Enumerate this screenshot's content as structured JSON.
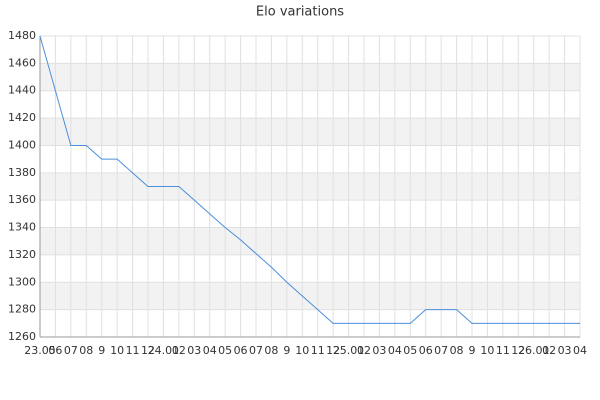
{
  "chart_data": {
    "type": "line",
    "title": "Elo variations",
    "categories": [
      "23.05",
      "06",
      "07",
      "08",
      "9",
      "10",
      "11",
      "12",
      "24.01",
      "02",
      "03",
      "04",
      "05",
      "06",
      "07",
      "08",
      "9",
      "10",
      "11",
      "12",
      "25.01",
      "02",
      "03",
      "04",
      "05",
      "06",
      "07",
      "08",
      "9",
      "10",
      "11",
      "12",
      "26.01",
      "02",
      "03",
      "04"
    ],
    "series": [
      {
        "name": "Elo",
        "color": "#4a8fdc",
        "values": [
          1480,
          1440,
          1400,
          1400,
          1390,
          1390,
          1380,
          1370,
          1370,
          1370,
          1360,
          1350,
          1340,
          1331,
          1321,
          1311,
          1300,
          1290,
          1280,
          1270,
          1270,
          1270,
          1270,
          1270,
          1270,
          1280,
          1280,
          1280,
          1270,
          1270,
          1270,
          1270,
          1270,
          1270,
          1270,
          1270
        ]
      }
    ],
    "ylim": [
      1260,
      1480
    ],
    "yticks": [
      1260,
      1280,
      1300,
      1320,
      1340,
      1360,
      1380,
      1400,
      1420,
      1440,
      1460,
      1480
    ],
    "grid": true
  }
}
